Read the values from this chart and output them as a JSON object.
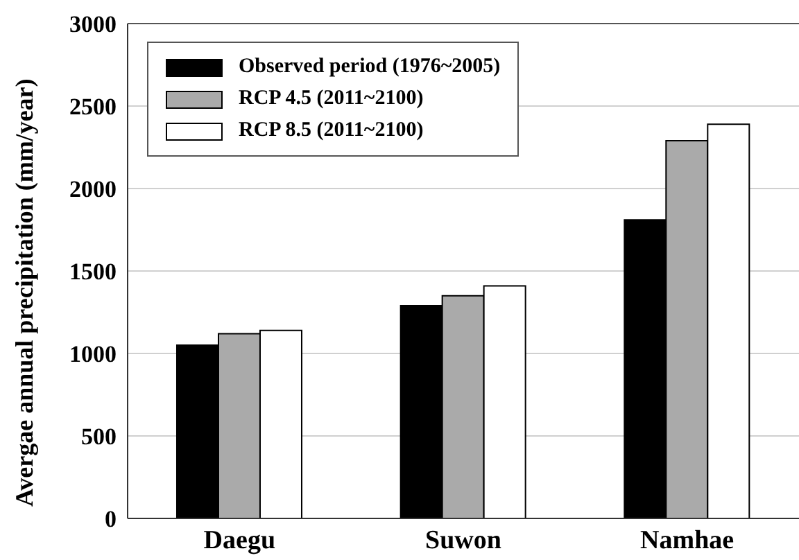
{
  "chart_data": {
    "type": "bar",
    "ylabel": "Avergae annual precipitation (mm/year)",
    "categories": [
      "Daegu",
      "Suwon",
      "Namhae"
    ],
    "series": [
      {
        "name": "Observed period (1976~2005)",
        "color": "#000000",
        "values": [
          1050,
          1290,
          1810
        ]
      },
      {
        "name": "RCP 4.5 (2011~2100)",
        "color": "#aaaaaa",
        "values": [
          1120,
          1350,
          2290
        ]
      },
      {
        "name": "RCP 8.5 (2011~2100)",
        "color": "#ffffff",
        "values": [
          1140,
          1410,
          2390
        ]
      }
    ],
    "ylim": [
      0,
      3000
    ],
    "yticks": [
      0,
      500,
      1000,
      1500,
      2000,
      2500,
      3000
    ],
    "grid": "y",
    "legend": "top left"
  }
}
